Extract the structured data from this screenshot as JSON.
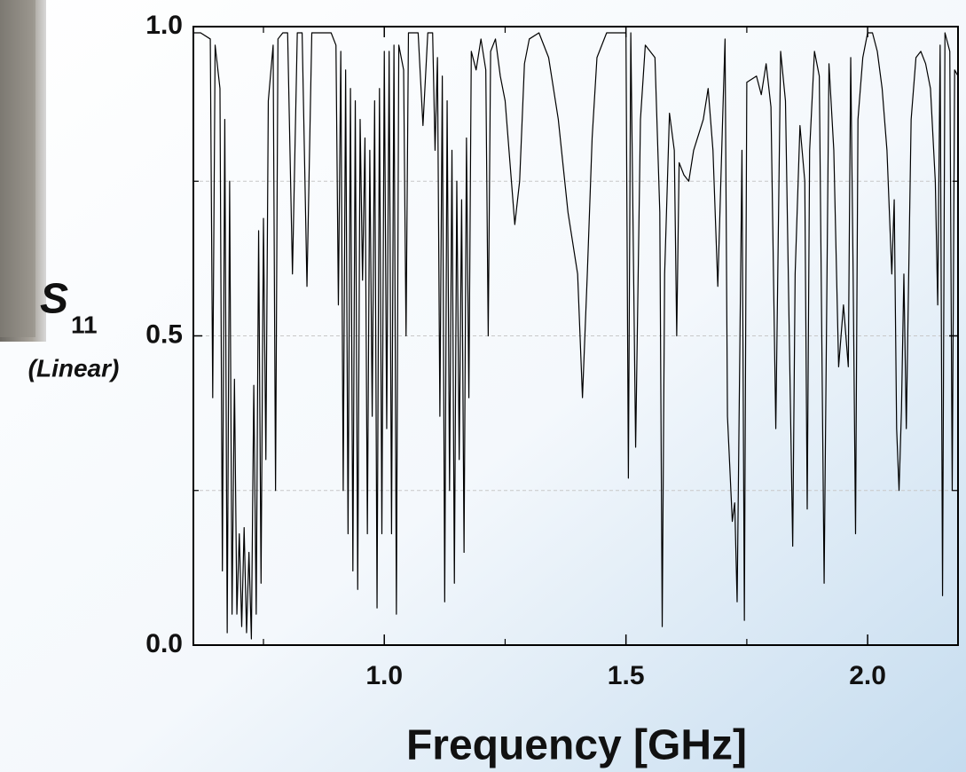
{
  "chart_data": {
    "type": "line",
    "ylabel": "S",
    "ylabel_subscript": "11",
    "ylabel_note": "(Linear)",
    "xlabel": "Frequency [GHz]",
    "color": "#000000",
    "xlim": [
      0.605,
      2.187
    ],
    "ylim": [
      0,
      1
    ],
    "xticks": [
      {
        "value": 1.0,
        "label": "1.0"
      },
      {
        "value": 1.5,
        "label": "1.5"
      },
      {
        "value": 2.0,
        "label": "2.0"
      }
    ],
    "xminor": [
      0.75,
      1.25,
      1.75
    ],
    "yticks": [
      {
        "value": 0,
        "label": "0.0"
      },
      {
        "value": 0.5,
        "label": "0.5"
      },
      {
        "value": 1.0,
        "label": "1.0"
      }
    ],
    "yminor": [
      0.25,
      0.75
    ],
    "grid": true,
    "x": [
      0.605,
      0.62,
      0.64,
      0.645,
      0.65,
      0.66,
      0.665,
      0.67,
      0.675,
      0.68,
      0.685,
      0.69,
      0.695,
      0.7,
      0.705,
      0.71,
      0.715,
      0.72,
      0.725,
      0.73,
      0.735,
      0.74,
      0.745,
      0.75,
      0.755,
      0.76,
      0.77,
      0.775,
      0.78,
      0.79,
      0.8,
      0.81,
      0.82,
      0.83,
      0.84,
      0.85,
      0.87,
      0.89,
      0.9,
      0.905,
      0.91,
      0.915,
      0.92,
      0.925,
      0.93,
      0.935,
      0.94,
      0.945,
      0.95,
      0.955,
      0.96,
      0.965,
      0.97,
      0.975,
      0.98,
      0.985,
      0.99,
      0.995,
      1.0,
      1.005,
      1.01,
      1.015,
      1.02,
      1.025,
      1.03,
      1.04,
      1.045,
      1.05,
      1.07,
      1.08,
      1.09,
      1.1,
      1.105,
      1.11,
      1.115,
      1.12,
      1.125,
      1.13,
      1.135,
      1.14,
      1.145,
      1.15,
      1.155,
      1.16,
      1.165,
      1.17,
      1.175,
      1.18,
      1.19,
      1.2,
      1.21,
      1.215,
      1.22,
      1.23,
      1.24,
      1.25,
      1.26,
      1.27,
      1.28,
      1.29,
      1.3,
      1.32,
      1.34,
      1.36,
      1.38,
      1.4,
      1.41,
      1.42,
      1.43,
      1.44,
      1.46,
      1.48,
      1.5,
      1.505,
      1.51,
      1.52,
      1.53,
      1.54,
      1.56,
      1.57,
      1.575,
      1.58,
      1.59,
      1.6,
      1.605,
      1.61,
      1.62,
      1.63,
      1.64,
      1.66,
      1.67,
      1.68,
      1.69,
      1.7,
      1.705,
      1.71,
      1.72,
      1.725,
      1.73,
      1.74,
      1.745,
      1.75,
      1.77,
      1.78,
      1.79,
      1.8,
      1.81,
      1.82,
      1.83,
      1.84,
      1.845,
      1.85,
      1.86,
      1.87,
      1.875,
      1.88,
      1.89,
      1.9,
      1.91,
      1.92,
      1.93,
      1.94,
      1.95,
      1.96,
      1.965,
      1.97,
      1.975,
      1.98,
      1.99,
      2.0,
      2.01,
      2.02,
      2.03,
      2.04,
      2.05,
      2.055,
      2.06,
      2.065,
      2.07,
      2.075,
      2.08,
      2.09,
      2.1,
      2.11,
      2.12,
      2.13,
      2.14,
      2.145,
      2.15,
      2.155,
      2.16,
      2.17,
      2.175,
      2.18,
      2.187
    ],
    "values": [
      0.99,
      0.99,
      0.98,
      0.4,
      0.97,
      0.9,
      0.12,
      0.85,
      0.02,
      0.75,
      0.05,
      0.43,
      0.05,
      0.18,
      0.03,
      0.19,
      0.02,
      0.15,
      0.01,
      0.42,
      0.05,
      0.67,
      0.1,
      0.69,
      0.3,
      0.88,
      0.97,
      0.25,
      0.98,
      0.99,
      0.99,
      0.6,
      0.99,
      0.99,
      0.58,
      0.99,
      0.99,
      0.99,
      0.97,
      0.55,
      0.96,
      0.25,
      0.93,
      0.18,
      0.9,
      0.12,
      0.88,
      0.09,
      0.85,
      0.59,
      0.82,
      0.18,
      0.8,
      0.37,
      0.88,
      0.06,
      0.9,
      0.18,
      0.96,
      0.35,
      0.96,
      0.18,
      0.97,
      0.05,
      0.97,
      0.93,
      0.5,
      0.99,
      0.99,
      0.84,
      0.99,
      0.99,
      0.8,
      0.95,
      0.37,
      0.92,
      0.07,
      0.88,
      0.25,
      0.8,
      0.1,
      0.75,
      0.3,
      0.72,
      0.15,
      0.82,
      0.4,
      0.96,
      0.93,
      0.98,
      0.93,
      0.5,
      0.96,
      0.98,
      0.92,
      0.88,
      0.78,
      0.68,
      0.75,
      0.94,
      0.98,
      0.99,
      0.95,
      0.85,
      0.7,
      0.6,
      0.4,
      0.6,
      0.82,
      0.95,
      0.99,
      0.99,
      0.99,
      0.27,
      0.99,
      0.32,
      0.85,
      0.97,
      0.95,
      0.7,
      0.03,
      0.6,
      0.86,
      0.8,
      0.5,
      0.78,
      0.76,
      0.75,
      0.8,
      0.85,
      0.9,
      0.8,
      0.58,
      0.85,
      0.98,
      0.37,
      0.2,
      0.23,
      0.07,
      0.8,
      0.04,
      0.91,
      0.92,
      0.89,
      0.94,
      0.87,
      0.35,
      0.96,
      0.88,
      0.4,
      0.16,
      0.6,
      0.84,
      0.75,
      0.22,
      0.8,
      0.96,
      0.92,
      0.1,
      0.94,
      0.8,
      0.45,
      0.55,
      0.45,
      0.95,
      0.6,
      0.18,
      0.85,
      0.95,
      0.99,
      0.99,
      0.96,
      0.9,
      0.8,
      0.6,
      0.72,
      0.35,
      0.25,
      0.38,
      0.6,
      0.35,
      0.85,
      0.95,
      0.96,
      0.94,
      0.9,
      0.75,
      0.55,
      0.97,
      0.08,
      0.99,
      0.96,
      0.25,
      0.93,
      0.92
    ]
  }
}
